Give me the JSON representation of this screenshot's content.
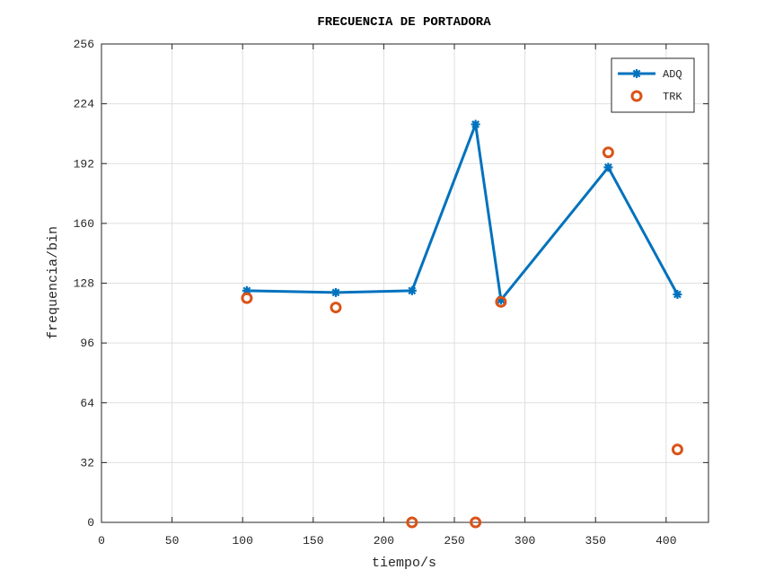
{
  "chart_data": {
    "type": "line",
    "title": "FRECUENCIA DE PORTADORA",
    "xlabel": "tiempo/s",
    "ylabel": "frequencia/bin",
    "xlim": [
      0,
      430
    ],
    "ylim": [
      0,
      256
    ],
    "xticks": [
      0,
      50,
      100,
      150,
      200,
      250,
      300,
      350,
      400
    ],
    "yticks": [
      0,
      32,
      64,
      96,
      128,
      160,
      192,
      224,
      256
    ],
    "grid": true,
    "legend_position": "top-right",
    "series": [
      {
        "name": "ADQ",
        "style": "line-asterisk",
        "color": "#0072BD",
        "x": [
          103,
          166,
          220,
          265,
          283,
          359,
          408
        ],
        "y": [
          124,
          123,
          124,
          213,
          119,
          190,
          122
        ]
      },
      {
        "name": "TRK",
        "style": "circle",
        "color": "#D95319",
        "x": [
          103,
          166,
          220,
          265,
          283,
          359,
          408
        ],
        "y": [
          120,
          115,
          0,
          0,
          118,
          198,
          39
        ]
      }
    ]
  }
}
